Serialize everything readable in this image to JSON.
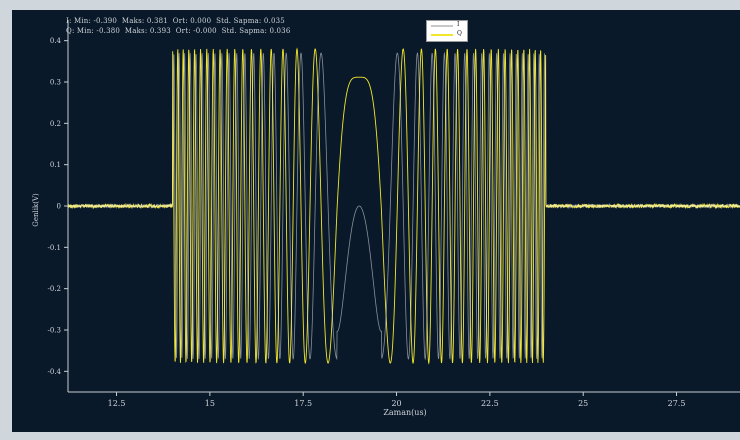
{
  "chart_data": {
    "type": "line",
    "title": "",
    "xlabel": "Zaman(us)",
    "ylabel": "Genlik(V)",
    "xlim": [
      11.2,
      29.2
    ],
    "ylim": [
      -0.45,
      0.45
    ],
    "x_ticks": [
      "12.5",
      "15",
      "17.5",
      "20",
      "22.5",
      "25",
      "27.5"
    ],
    "x_tick_values": [
      12.5,
      15,
      17.5,
      20,
      22.5,
      25,
      27.5
    ],
    "y_ticks": [
      "0.4",
      "0.3",
      "0.2",
      "0.1",
      "0",
      "-0.1",
      "-0.2",
      "-0.3",
      "-0.4"
    ],
    "y_tick_values": [
      0.4,
      0.3,
      0.2,
      0.1,
      0,
      -0.1,
      -0.2,
      -0.3,
      -0.4
    ],
    "grid": false,
    "legend_position": "top-center",
    "series": [
      {
        "name": "I",
        "color": "#f0f0f0",
        "pulse_start": 14.0,
        "pulse_end": 24.0,
        "center": 19.0,
        "amplitude": 0.37,
        "noise_amplitude": 0.004,
        "min": -0.39,
        "max": 0.381
      },
      {
        "name": "Q",
        "color": "#f2e62c",
        "pulse_start": 14.0,
        "pulse_end": 24.0,
        "center": 19.0,
        "amplitude": 0.38,
        "noise_amplitude": 0.004,
        "min": -0.38,
        "max": 0.393
      }
    ],
    "stats": [
      "I: Min: -0.390  Maks: 0.381  Ort: 0.000  Std. Sapma: 0.035",
      "Q: Min: -0.380  Maks: 0.393  Ort: -0.000  Std. Sapma: 0.036"
    ]
  }
}
